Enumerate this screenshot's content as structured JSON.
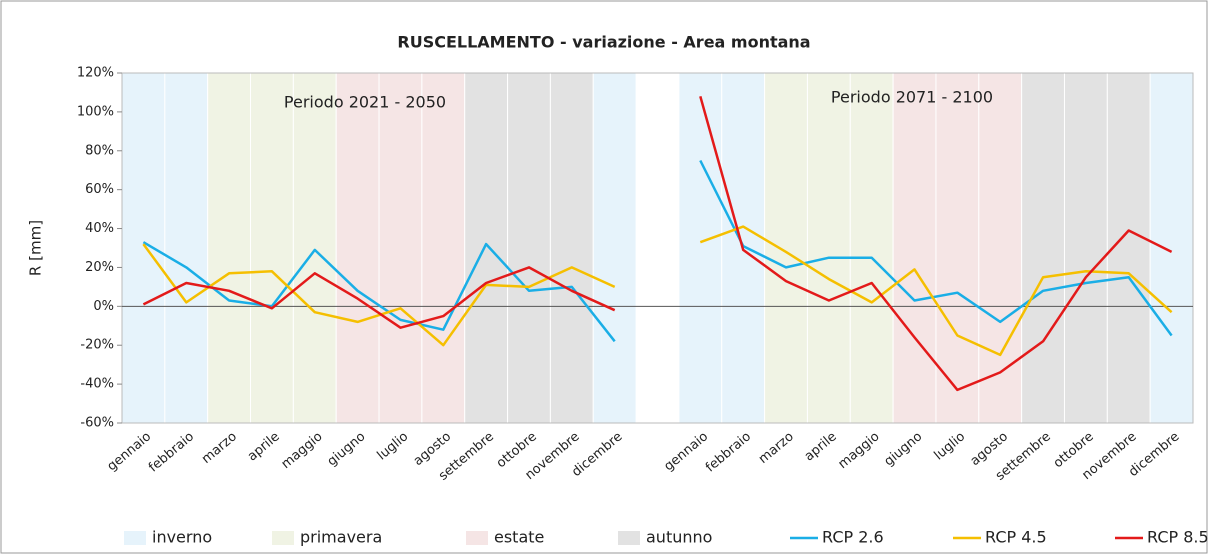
{
  "chart_data": {
    "type": "line",
    "title": "RUSCELLAMENTO - variazione - Area montana",
    "y_label": "R [mm]",
    "annotations": [
      "Periodo 2021 - 2050",
      "Periodo 2071 - 2100"
    ],
    "categories": [
      "gennaio",
      "febbraio",
      "marzo",
      "aprile",
      "maggio",
      "giugno",
      "luglio",
      "agosto",
      "settembre",
      "ottobre",
      "novembre",
      "dicembre",
      null,
      "gennaio",
      "febbraio",
      "marzo",
      "aprile",
      "maggio",
      "giugno",
      "luglio",
      "agosto",
      "settembre",
      "ottobre",
      "novembre",
      "dicembre"
    ],
    "seasons": [
      {
        "name": "inverno",
        "color": "#e6f3fb",
        "months": [
          "dicembre",
          "gennaio",
          "febbraio"
        ]
      },
      {
        "name": "primavera",
        "color": "#f0f3e4",
        "months": [
          "marzo",
          "aprile",
          "maggio"
        ]
      },
      {
        "name": "estate",
        "color": "#f5e5e5",
        "months": [
          "giugno",
          "luglio",
          "agosto"
        ]
      },
      {
        "name": "autunno",
        "color": "#e2e2e2",
        "months": [
          "settembre",
          "ottobre",
          "novembre"
        ]
      }
    ],
    "series": [
      {
        "name": "RCP 2.6",
        "color": "#1aaee6",
        "values": [
          33,
          20,
          3,
          0,
          29,
          8,
          -7,
          -12,
          32,
          8,
          10,
          -18,
          null,
          75,
          31,
          20,
          25,
          25,
          3,
          7,
          -8,
          8,
          12,
          15,
          -15
        ]
      },
      {
        "name": "RCP 4.5",
        "color": "#f5bf00",
        "values": [
          32,
          2,
          17,
          18,
          -3,
          -8,
          -1,
          -20,
          11,
          10,
          20,
          10,
          null,
          33,
          41,
          28,
          14,
          2,
          19,
          -15,
          -25,
          15,
          18,
          17,
          -3
        ]
      },
      {
        "name": "RCP 8.5",
        "color": "#e31a1a",
        "values": [
          1,
          12,
          8,
          -1,
          17,
          4,
          -11,
          -5,
          12,
          20,
          8,
          -2,
          null,
          108,
          29,
          13,
          3,
          12,
          -16,
          -43,
          -34,
          -18,
          15,
          39,
          28
        ]
      }
    ],
    "ylim": [
      -60,
      120
    ],
    "yticks": [
      {
        "value": -60,
        "label": "-60%"
      },
      {
        "value": -40,
        "label": "-40%"
      },
      {
        "value": -20,
        "label": "-20%"
      },
      {
        "value": 0,
        "label": "0%"
      },
      {
        "value": 20,
        "label": "20%"
      },
      {
        "value": 40,
        "label": "40%"
      },
      {
        "value": 60,
        "label": "60%"
      },
      {
        "value": 80,
        "label": "80%"
      },
      {
        "value": 100,
        "label": "100%"
      },
      {
        "value": 120,
        "label": "120%"
      }
    ],
    "legend": "bottom"
  }
}
